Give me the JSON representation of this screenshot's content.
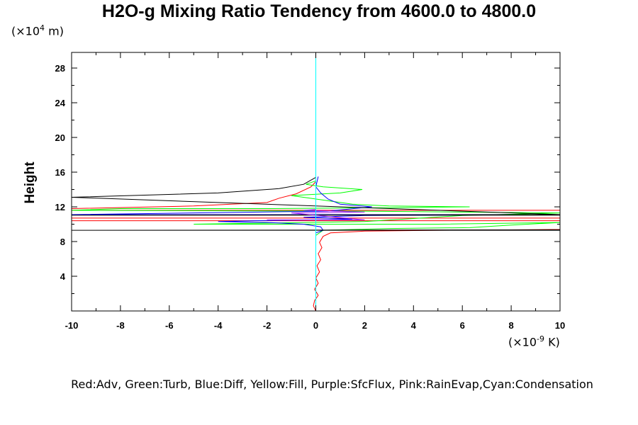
{
  "chart_data": {
    "type": "line",
    "title": "H2O-g Mixing Ratio Tendency from 4600.0 to 4800.0",
    "ylabel": "Height",
    "y_unit_prefix": "(×10",
    "y_unit_exp": "4",
    "y_unit_suffix": " m)",
    "x_unit_prefix": "(×10",
    "x_unit_exp": "-9",
    "x_unit_suffix": " K)",
    "caption": "Red:Adv, Green:Turb, Blue:Diff, Yellow:Fill, Purple:SfcFlux, Pink:RainEvap,Cyan:Condensation",
    "xlim": [
      -10,
      10
    ],
    "ylim": [
      0,
      29.8
    ],
    "x_ticks": [
      -10,
      -8,
      -6,
      -4,
      -2,
      0,
      2,
      4,
      6,
      8,
      10
    ],
    "x_tick_labels": [
      "-10",
      "-8",
      "-6",
      "-4",
      "-2",
      "0",
      "2",
      "4",
      "6",
      "8",
      "10"
    ],
    "y_ticks": [
      4,
      8,
      12,
      16,
      20,
      24,
      28
    ],
    "y_tick_labels": [
      "4",
      "8",
      "12",
      "16",
      "20",
      "24",
      "28"
    ],
    "grid": false,
    "series": [
      {
        "color": "#ff0000",
        "points": [
          [
            0.0,
            0.0
          ],
          [
            -0.1,
            0.6
          ],
          [
            -0.05,
            1.2
          ],
          [
            0.1,
            1.8
          ],
          [
            -0.05,
            2.5
          ],
          [
            0.1,
            3.2
          ],
          [
            0.0,
            3.8
          ],
          [
            0.15,
            4.5
          ],
          [
            0.05,
            5.2
          ],
          [
            0.2,
            5.9
          ],
          [
            0.1,
            6.6
          ],
          [
            0.25,
            7.3
          ],
          [
            0.15,
            7.9
          ],
          [
            0.3,
            8.6
          ],
          [
            0.6,
            9.0
          ],
          [
            2.0,
            9.2
          ],
          [
            5.0,
            9.3
          ],
          [
            8.0,
            9.35
          ],
          [
            10.0,
            9.4
          ],
          [
            10.0,
            10.4
          ],
          [
            -10.0,
            10.4
          ],
          [
            -10.0,
            10.7
          ],
          [
            10.0,
            10.7
          ],
          [
            10.0,
            11.6
          ],
          [
            -10.0,
            11.6
          ],
          [
            -10.0,
            11.8
          ],
          [
            -5.0,
            12.1
          ],
          [
            -2.0,
            12.5
          ],
          [
            -1.5,
            13.0
          ],
          [
            -0.8,
            13.5
          ],
          [
            -0.2,
            14.3
          ],
          [
            0.0,
            14.9
          ],
          [
            0.0,
            15.3
          ]
        ]
      },
      {
        "color": "#00ff00",
        "points": [
          [
            0.0,
            8.7
          ],
          [
            0.3,
            9.3
          ],
          [
            3.0,
            9.5
          ],
          [
            6.3,
            9.6
          ],
          [
            8.0,
            9.9
          ],
          [
            10.0,
            10.2
          ],
          [
            5.0,
            10.0
          ],
          [
            -5.0,
            10.0
          ],
          [
            2.0,
            10.3
          ],
          [
            6.0,
            11.0
          ],
          [
            10.0,
            11.3
          ],
          [
            2.0,
            11.5
          ],
          [
            -10.0,
            11.6
          ],
          [
            -8.0,
            11.8
          ],
          [
            -2.0,
            11.8
          ],
          [
            3.0,
            11.9
          ],
          [
            6.3,
            12.0
          ],
          [
            3.0,
            12.1
          ],
          [
            1.5,
            12.3
          ],
          [
            0.5,
            12.7
          ],
          [
            -1.0,
            13.3
          ],
          [
            1.0,
            13.6
          ],
          [
            1.9,
            14.0
          ],
          [
            0.3,
            14.3
          ],
          [
            -0.4,
            14.6
          ],
          [
            0.0,
            15.0
          ],
          [
            0.0,
            15.4
          ]
        ]
      },
      {
        "color": "#0000ff",
        "points": [
          [
            0.0,
            9.0
          ],
          [
            0.3,
            9.3
          ],
          [
            0.2,
            9.7
          ],
          [
            -0.5,
            10.0
          ],
          [
            -2.0,
            10.2
          ],
          [
            -4.0,
            10.3
          ],
          [
            -2.5,
            10.4
          ],
          [
            0.0,
            10.5
          ],
          [
            1.5,
            10.6
          ],
          [
            -0.5,
            10.8
          ],
          [
            2.0,
            11.0
          ],
          [
            10.0,
            11.1
          ],
          [
            -10.0,
            11.1
          ],
          [
            -5.0,
            11.3
          ],
          [
            0.5,
            11.5
          ],
          [
            2.3,
            12.0
          ],
          [
            1.0,
            12.3
          ],
          [
            0.5,
            12.9
          ],
          [
            0.2,
            13.6
          ],
          [
            0.0,
            14.3
          ],
          [
            0.1,
            15.5
          ]
        ]
      },
      {
        "color": "#000000",
        "points": [
          [
            10.0,
            9.3
          ],
          [
            -10.0,
            9.3
          ],
          [
            10.0,
            9.35
          ],
          [
            10.0,
            11.05
          ],
          [
            -10.0,
            11.05
          ],
          [
            10.0,
            11.1
          ],
          [
            -10.0,
            13.1
          ],
          [
            -4.0,
            13.6
          ],
          [
            -1.5,
            14.1
          ],
          [
            -0.5,
            14.6
          ],
          [
            0.0,
            15.4
          ]
        ]
      },
      {
        "color": "#a020f0",
        "points": [
          [
            -2.0,
            10.5
          ],
          [
            2.0,
            10.5
          ],
          [
            -1.0,
            11.3
          ],
          [
            2.0,
            11.4
          ],
          [
            -0.5,
            11.6
          ],
          [
            0.0,
            11.7
          ]
        ]
      },
      {
        "color": "#00ffff",
        "points": [
          [
            0.0,
            0.0
          ],
          [
            0.0,
            29.8
          ]
        ]
      }
    ]
  }
}
